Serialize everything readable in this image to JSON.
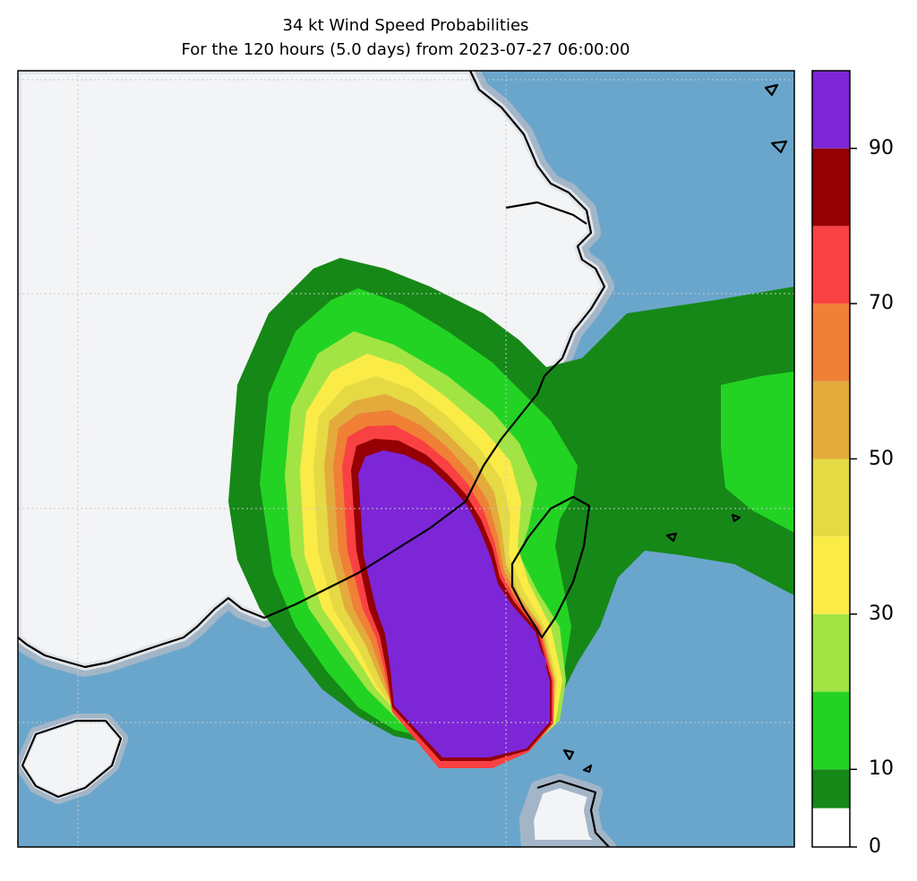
{
  "title": {
    "line1": "34 kt Wind Speed Probabilities",
    "line2": "For the 120 hours (5.0 days) from 2023-07-27 06:00:00"
  },
  "colors": {
    "ocean": "#6aa6cc",
    "land": "#f3f4f6",
    "coast_halo": [
      "#a3b6c7",
      "#c4ccd6",
      "#e2e5ea"
    ],
    "coastline": "#000000",
    "grid": "#c8c8c8"
  },
  "colorbar": {
    "levels": [
      0,
      5,
      10,
      20,
      30,
      40,
      50,
      60,
      70,
      80,
      90,
      100
    ],
    "colors": [
      "#ffffff",
      "#168817",
      "#23d323",
      "#a2e444",
      "#fbeb47",
      "#e5da43",
      "#e3ab3c",
      "#ef8036",
      "#f94143",
      "#940003",
      "#7d26d8"
    ],
    "tick_labels": [
      "0",
      "10",
      "30",
      "50",
      "70",
      "90"
    ]
  },
  "chart_data": {
    "type": "heatmap",
    "title": "34 kt Wind Speed Probabilities",
    "subtitle": "For the 120 hours (5.0 days) from 2023-07-27 06:00:00",
    "variable": "34 kt wind speed probability (%)",
    "range": [
      0,
      100
    ],
    "legend_placement": "right"
  }
}
